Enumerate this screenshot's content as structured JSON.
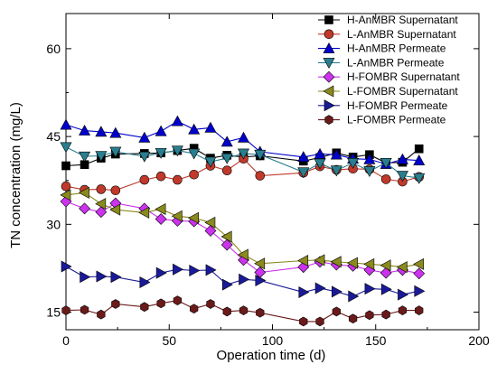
{
  "chart_data": {
    "type": "line",
    "xlabel": "Operation time (d)",
    "ylabel": "TN concentration (mg/L)",
    "xlim": [
      0,
      200
    ],
    "ylim": [
      12,
      66
    ],
    "xticks": [
      0,
      50,
      100,
      150,
      200
    ],
    "yticks": [
      15,
      30,
      45,
      60
    ],
    "grid": false,
    "legend_position": "top-right",
    "series": [
      {
        "name": "H-AnMBR Supernatant",
        "marker": "square",
        "color": "#000000",
        "x": [
          0,
          9,
          17,
          24,
          38,
          46,
          54,
          62,
          70,
          78,
          86,
          94,
          115,
          123,
          131,
          139,
          147,
          155,
          163,
          171
        ],
        "y": [
          40.0,
          40.2,
          41.3,
          42.0,
          42.1,
          42.2,
          42.6,
          43.0,
          41.3,
          41.8,
          41.5,
          41.7,
          40.8,
          41.4,
          42.2,
          41.5,
          41.9,
          40.5,
          40.6,
          42.9
        ]
      },
      {
        "name": "L-AnMBR Supernatant",
        "marker": "circle",
        "color": "#c0392b",
        "x": [
          0,
          9,
          17,
          24,
          38,
          46,
          54,
          62,
          70,
          78,
          86,
          94,
          115,
          123,
          131,
          139,
          147,
          155,
          163,
          171
        ],
        "y": [
          36.5,
          35.9,
          36.0,
          35.8,
          37.6,
          38.2,
          37.6,
          38.5,
          40.0,
          39.2,
          41.2,
          38.3,
          38.8,
          39.9,
          39.3,
          39.5,
          39.4,
          37.7,
          37.3,
          38.1
        ]
      },
      {
        "name": "H-AnMBR Permeate",
        "marker": "triangle-up",
        "color": "#0000cc",
        "x": [
          0,
          9,
          17,
          24,
          38,
          46,
          54,
          62,
          70,
          78,
          86,
          94,
          115,
          123,
          131,
          139,
          147,
          155,
          163,
          171
        ],
        "y": [
          47.0,
          46.0,
          45.8,
          45.6,
          44.8,
          45.9,
          47.6,
          46.2,
          46.5,
          44.1,
          44.8,
          42.4,
          41.5,
          42.0,
          41.9,
          41.2,
          41.1,
          40.3,
          41.1,
          40.9
        ]
      },
      {
        "name": "L-AnMBR Permeate",
        "marker": "triangle-down",
        "color": "#2a7f8f",
        "x": [
          0,
          9,
          17,
          24,
          38,
          46,
          54,
          62,
          70,
          78,
          86,
          94,
          115,
          123,
          131,
          139,
          147,
          155,
          163,
          171
        ],
        "y": [
          43.2,
          41.6,
          41.7,
          42.4,
          41.6,
          42.2,
          42.6,
          42.1,
          40.7,
          41.3,
          42.1,
          41.9,
          38.9,
          40.4,
          39.2,
          40.5,
          39.1,
          40.5,
          38.3,
          37.9
        ]
      },
      {
        "name": "H-FOMBR Supernatant",
        "marker": "diamond",
        "color": "#cc33ee",
        "x": [
          0,
          9,
          17,
          24,
          38,
          46,
          54,
          62,
          70,
          78,
          86,
          94,
          115,
          123,
          131,
          139,
          147,
          155,
          163,
          171
        ],
        "y": [
          33.9,
          32.7,
          32.1,
          33.6,
          32.7,
          30.9,
          30.6,
          30.5,
          28.9,
          26.5,
          23.9,
          21.8,
          22.7,
          23.6,
          23.1,
          22.9,
          22.2,
          21.7,
          22.2,
          21.6
        ]
      },
      {
        "name": "L-FOMBR Supernatant",
        "marker": "triangle-left",
        "color": "#8a8a1e",
        "x": [
          0,
          9,
          17,
          24,
          38,
          46,
          54,
          62,
          70,
          78,
          86,
          94,
          115,
          123,
          131,
          139,
          147,
          155,
          163,
          171
        ],
        "y": [
          35.0,
          35.4,
          33.5,
          32.5,
          32.0,
          32.6,
          31.4,
          31.1,
          30.3,
          27.9,
          24.8,
          23.3,
          23.8,
          23.9,
          23.6,
          23.4,
          23.2,
          23.0,
          22.7,
          23.2
        ]
      },
      {
        "name": "H-FOMBR Permeate",
        "marker": "triangle-right",
        "color": "#1a1a99",
        "x": [
          0,
          9,
          17,
          24,
          38,
          46,
          54,
          62,
          70,
          78,
          86,
          94,
          115,
          123,
          131,
          139,
          147,
          155,
          163,
          171
        ],
        "y": [
          22.8,
          21.0,
          21.1,
          21.0,
          20.1,
          21.7,
          22.3,
          22.1,
          22.2,
          19.7,
          20.6,
          20.4,
          18.4,
          19.1,
          18.5,
          17.7,
          19.0,
          18.9,
          18.0,
          18.6
        ]
      },
      {
        "name": "L-FOMBR Permeate",
        "marker": "hexagon",
        "color": "#6b1a1a",
        "x": [
          0,
          9,
          17,
          24,
          38,
          46,
          54,
          62,
          70,
          78,
          86,
          94,
          115,
          123,
          131,
          139,
          147,
          155,
          163,
          171
        ],
        "y": [
          15.3,
          15.4,
          14.6,
          16.4,
          15.9,
          16.5,
          17.0,
          15.6,
          16.4,
          15.1,
          15.3,
          14.9,
          13.4,
          13.4,
          15.1,
          13.9,
          14.5,
          14.6,
          15.3,
          15.3
        ]
      }
    ]
  }
}
